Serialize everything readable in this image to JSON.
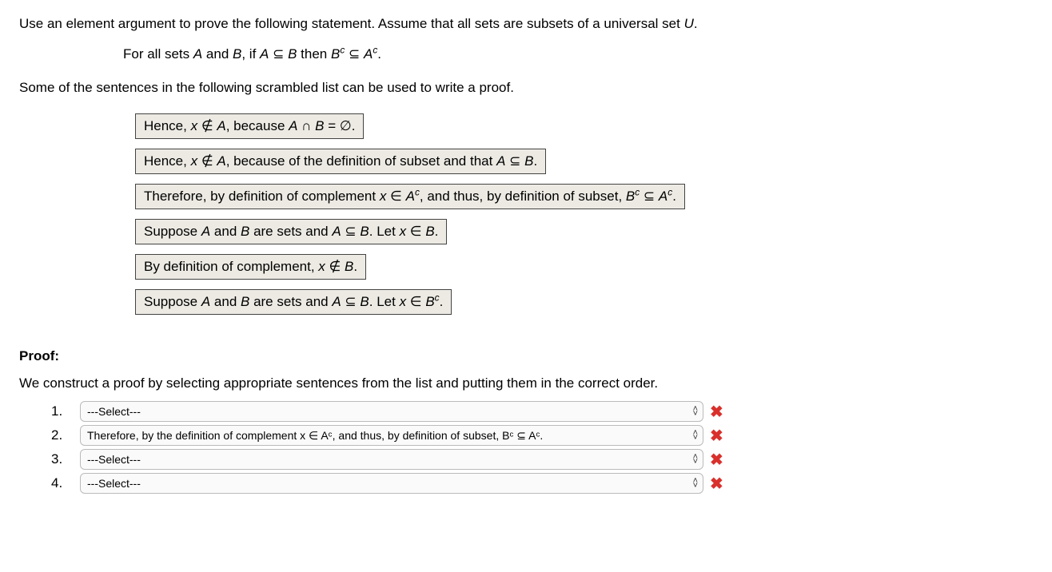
{
  "intro": "Use an element argument to prove the following statement. Assume that all sets are subsets of a universal set ",
  "intro_var": "U",
  "intro_end": ".",
  "statement_prefix": "For all sets ",
  "A": "A",
  "and": " and ",
  "B": "B",
  "if_text": ", if ",
  "subset_sym": " ⊆ ",
  "then_text": " then ",
  "Bc": "B",
  "Ac": "A",
  "sup_c": "c",
  "period": ".",
  "lead": "Some of the sentences in the following scrambled list can be used to write a proof.",
  "boxes": {
    "b1_pre": "Hence, ",
    "x": "x",
    "notin": " ∉ ",
    "b1_mid": ", because ",
    "cap": " ∩ ",
    "eq_empty": " = ∅.",
    "b2_mid": ", because of the definition of subset and that ",
    "b3_pre": "Therefore, by definition of complement ",
    "in": " ∈ ",
    "b3_mid": ", and thus, by definition of subset, ",
    "b4_pre": "Suppose ",
    "b4_mid": " are sets and ",
    "b4_let": ". Let ",
    "b5_pre": "By definition of complement, "
  },
  "proof_heading": "Proof:",
  "proof_intro": "We construct a proof by selecting appropriate sentences from the list and putting them in the correct order.",
  "steps": {
    "s1_num": "1.",
    "s2_num": "2.",
    "s3_num": "3.",
    "s4_num": "4.",
    "placeholder": "---Select---",
    "s2_value": "Therefore, by the definition of complement x ∈ Aᶜ, and thus, by definition of subset, Bᶜ ⊆ Aᶜ."
  },
  "wrong_mark": "✖"
}
